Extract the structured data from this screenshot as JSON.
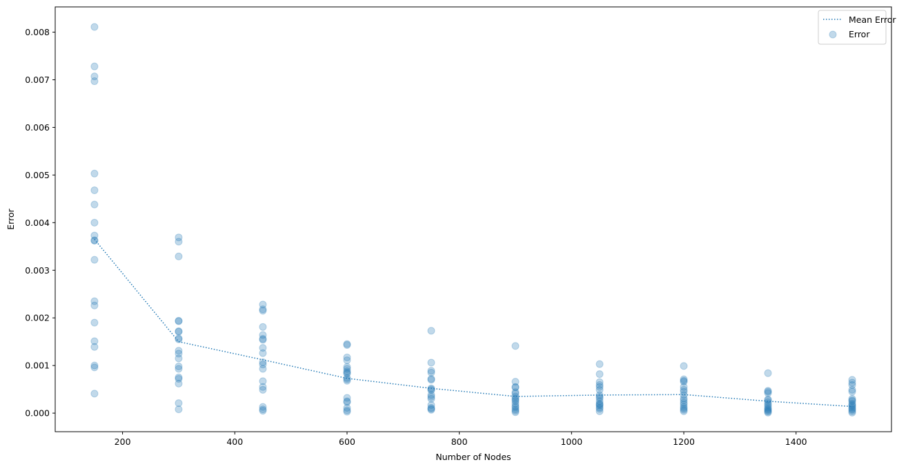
{
  "chart_data": {
    "type": "scatter",
    "title": "",
    "xlabel": "Number of Nodes",
    "ylabel": "Error",
    "xlim": [
      80,
      1570
    ],
    "ylim": [
      -0.00039,
      0.00853
    ],
    "xticks": [
      200,
      400,
      600,
      800,
      1000,
      1200,
      1400
    ],
    "xtick_labels": [
      "200",
      "400",
      "600",
      "800",
      "1000",
      "1200",
      "1400"
    ],
    "yticks": [
      0.0,
      0.001,
      0.002,
      0.003,
      0.004,
      0.005,
      0.006,
      0.007,
      0.008
    ],
    "ytick_labels": [
      "0.000",
      "0.001",
      "0.002",
      "0.003",
      "0.004",
      "0.005",
      "0.006",
      "0.007",
      "0.008"
    ],
    "grid": false,
    "legend_position": "top-right",
    "colors": {
      "series": "#1f77b4"
    },
    "series": [
      {
        "name": "Mean Error",
        "kind": "line",
        "style": "dotted",
        "x": [
          150,
          300,
          450,
          600,
          750,
          900,
          1050,
          1200,
          1350,
          1500
        ],
        "y": [
          0.00365,
          0.0015,
          0.00112,
          0.00073,
          0.00052,
          0.00035,
          0.00038,
          0.00039,
          0.00025,
          0.00014
        ]
      },
      {
        "name": "Error",
        "kind": "scatter",
        "groups": [
          {
            "x": 150,
            "y": [
              0.00811,
              0.00728,
              0.00707,
              0.00697,
              0.00503,
              0.00468,
              0.00438,
              0.004,
              0.00373,
              0.00363,
              0.00362,
              0.00322,
              0.00235,
              0.00226,
              0.0019,
              0.00151,
              0.00139,
              0.001,
              0.00096,
              0.00041
            ]
          },
          {
            "x": 300,
            "y": [
              0.00369,
              0.0036,
              0.00329,
              0.00194,
              0.00193,
              0.00172,
              0.00171,
              0.00157,
              0.00155,
              0.00131,
              0.00125,
              0.00115,
              0.00098,
              0.00093,
              0.00075,
              0.00072,
              0.00062,
              0.00021,
              8e-05
            ]
          },
          {
            "x": 450,
            "y": [
              0.00228,
              0.00218,
              0.00215,
              0.00181,
              0.00164,
              0.00156,
              0.00154,
              0.00137,
              0.00126,
              0.00107,
              0.00102,
              0.00093,
              0.00067,
              0.00055,
              0.00049,
              0.00013,
              8e-05,
              5e-05
            ]
          },
          {
            "x": 600,
            "y": [
              0.00145,
              0.00143,
              0.00117,
              0.00111,
              0.00097,
              0.00093,
              0.00088,
              0.00085,
              0.00083,
              0.00074,
              0.00071,
              0.00068,
              0.00032,
              0.00025,
              0.00023,
              0.00011,
              6e-05,
              3e-05
            ]
          },
          {
            "x": 750,
            "y": [
              0.00173,
              0.00106,
              0.00089,
              0.00085,
              0.00072,
              0.0007,
              0.00052,
              0.0005,
              0.00048,
              0.00038,
              0.00034,
              0.0003,
              0.00017,
              0.00011,
              9e-05,
              7e-05
            ]
          },
          {
            "x": 900,
            "y": [
              0.00141,
              0.00066,
              0.00055,
              0.00054,
              0.00044,
              0.00041,
              0.00035,
              0.00031,
              0.00028,
              0.00025,
              0.0002,
              0.00015,
              0.00012,
              8e-05,
              5e-05,
              2e-05
            ]
          },
          {
            "x": 1050,
            "y": [
              0.00103,
              0.00082,
              0.00065,
              0.00059,
              0.00055,
              0.00049,
              0.00038,
              0.00034,
              0.00031,
              0.00025,
              0.0002,
              0.00018,
              0.00016,
              0.00012,
              9e-05,
              4e-05
            ]
          },
          {
            "x": 1200,
            "y": [
              0.00099,
              0.00071,
              0.00068,
              0.00066,
              0.00055,
              0.00049,
              0.00045,
              0.00038,
              0.00031,
              0.00027,
              0.00022,
              0.00018,
              0.00013,
              0.0001,
              7e-05,
              4e-05
            ]
          },
          {
            "x": 1350,
            "y": [
              0.00084,
              0.00047,
              0.00045,
              0.00042,
              0.00029,
              0.00027,
              0.00023,
              0.00019,
              0.00016,
              0.00012,
              9e-05,
              7e-05,
              5e-05,
              3e-05,
              1e-05
            ]
          },
          {
            "x": 1500,
            "y": [
              0.0007,
              0.00064,
              0.00059,
              0.00049,
              0.00045,
              0.0003,
              0.00027,
              0.00025,
              0.0002,
              0.00017,
              0.00015,
              0.00012,
              9e-05,
              7e-05,
              4e-05,
              1e-05
            ]
          }
        ]
      }
    ]
  }
}
